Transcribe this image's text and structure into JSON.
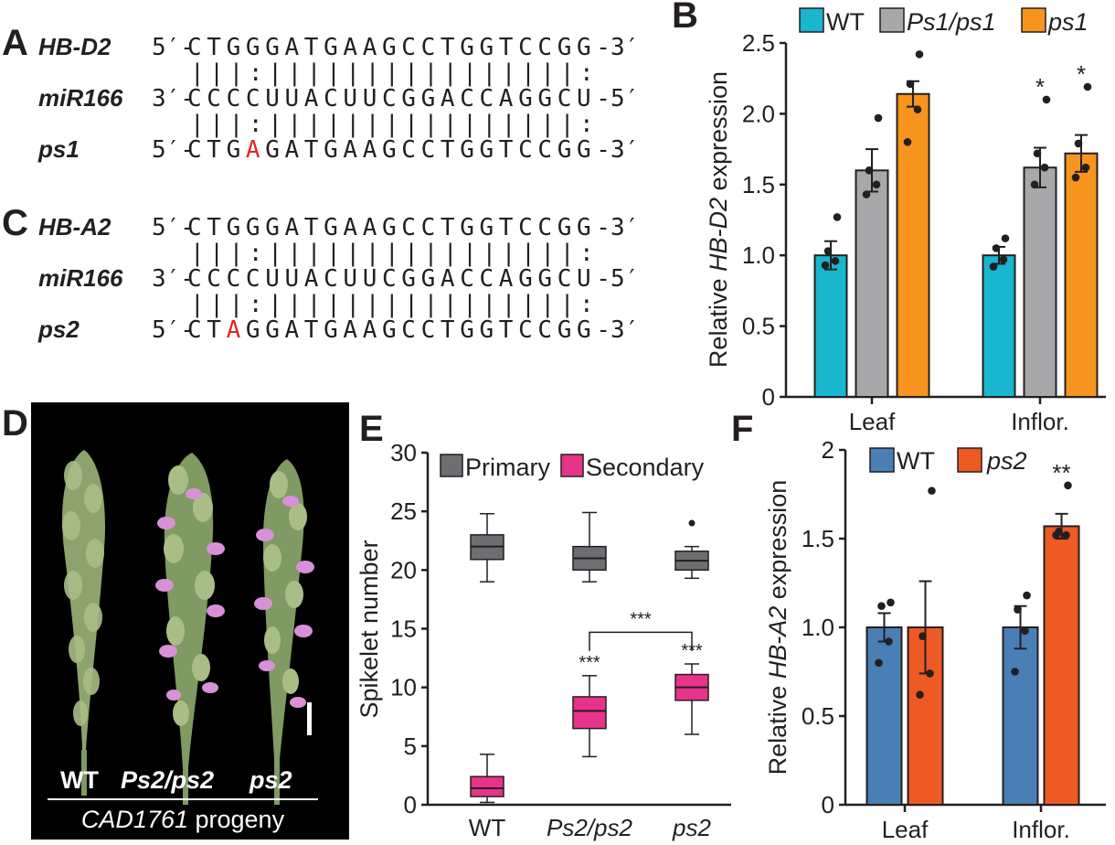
{
  "panels": {
    "A": "A",
    "B": "B",
    "C": "C",
    "D": "D",
    "E": "E",
    "F": "F"
  },
  "panel_a": {
    "rows": [
      {
        "name": "HB-D2",
        "p5": "5′-",
        "seq": "CTGGGATGAAGCCTGGTCCGG",
        "p3": "-3′"
      },
      {
        "name": "miR166",
        "p5": "3′-",
        "seq": "CCCCUUACUUCGGACCAGGCU",
        "p3": "-5′"
      },
      {
        "name": "ps1",
        "p5": "5′-",
        "seq": "CTGAGATGAAGCCTGGTCCGG",
        "p3": "-3′",
        "mut_index": 3
      }
    ],
    "pair_top": "|||:||||||||||||||||:",
    "pair_bottom": "|||:||||||||||||||||:"
  },
  "panel_c": {
    "rows": [
      {
        "name": "HB-A2",
        "p5": "5′-",
        "seq": "CTGGGATGAAGCCTGGTCCGG",
        "p3": "-3′"
      },
      {
        "name": "miR166",
        "p5": "3′-",
        "seq": "CCCCUUACUUCGGACCAGGCU",
        "p3": "-5′"
      },
      {
        "name": "ps2",
        "p5": "5′-",
        "seq": "CTAGGATGAAGCCTGGTCCGG",
        "p3": "-3′",
        "mut_index": 2
      }
    ],
    "pair_top": "|||:||||||||||||||||:",
    "pair_bottom": "|||:||||||||||||||||:"
  },
  "panel_d": {
    "labels": {
      "wt": "WT",
      "het": "Ps2/ps2",
      "mut": "ps2"
    },
    "caption_italic": "CAD1761",
    "caption_rest": " progeny"
  },
  "colors": {
    "wt_b": "#19b6cf",
    "het_b": "#a8a8aa",
    "ps1": "#f7941d",
    "primary": "#6d6e71",
    "secondary": "#e8338a",
    "wt_f": "#4a7fb5",
    "ps2": "#ee5a24"
  },
  "chart_data": [
    {
      "id": "B",
      "type": "bar",
      "ylabel_pre": "Relative ",
      "ylabel_italic": "HB-D2",
      "ylabel_post": " expression",
      "ylim": [
        0,
        2.5
      ],
      "yticks": [
        "0",
        "0.5",
        "1.0",
        "1.5",
        "2.0",
        "2.5"
      ],
      "categories": [
        "Leaf",
        "Inflor."
      ],
      "series": [
        {
          "name": "WT",
          "values": [
            1.0,
            1.0
          ],
          "err": [
            0.1,
            0.06
          ],
          "points": [
            [
              0.93,
              0.96,
              1.03,
              1.27
            ],
            [
              0.92,
              0.97,
              1.05,
              1.12
            ]
          ]
        },
        {
          "name": "Ps1/ps1",
          "values": [
            1.6,
            1.62
          ],
          "err": [
            0.15,
            0.14
          ],
          "points": [
            [
              1.43,
              1.5,
              1.6,
              1.97
            ],
            [
              1.5,
              1.62,
              1.72,
              2.1
            ]
          ]
        },
        {
          "name": "ps1",
          "values": [
            2.14,
            1.72
          ],
          "err": [
            0.09,
            0.13
          ],
          "points": [
            [
              1.8,
              2.03,
              2.21,
              2.42
            ],
            [
              1.55,
              1.62,
              1.79,
              2.19
            ]
          ]
        }
      ],
      "significance": [
        [
          "",
          "",
          ""
        ],
        [
          "",
          "*",
          "**"
        ],
        [
          "",
          "*",
          "**"
        ]
      ],
      "legend": [
        "WT",
        "Ps1/ps1",
        "ps1"
      ]
    },
    {
      "id": "E",
      "type": "box",
      "ylabel": "Spikelet number",
      "ylim": [
        0,
        30
      ],
      "yticks": [
        "0",
        "5",
        "10",
        "15",
        "20",
        "25",
        "30"
      ],
      "categories": [
        "WT",
        "Ps2/ps2",
        "ps2"
      ],
      "legend": [
        "Primary",
        "Secondary"
      ],
      "primary": [
        {
          "min": 19,
          "q1": 20.9,
          "med": 22,
          "q3": 23,
          "max": 24.8,
          "out": []
        },
        {
          "min": 19,
          "q1": 20,
          "med": 21,
          "q3": 22,
          "max": 24.9,
          "out": []
        },
        {
          "min": 19.3,
          "q1": 20,
          "med": 20.8,
          "q3": 21.6,
          "max": 22,
          "out": [
            24
          ]
        }
      ],
      "secondary": [
        {
          "min": 0.2,
          "q1": 0.7,
          "med": 1.4,
          "q3": 2.4,
          "max": 4.3,
          "out": []
        },
        {
          "min": 4.1,
          "q1": 6.5,
          "med": 8,
          "q3": 9.2,
          "max": 11,
          "out": []
        },
        {
          "min": 6,
          "q1": 8.9,
          "med": 10,
          "q3": 11.1,
          "max": 12,
          "out": []
        }
      ],
      "sig_labels": [
        "***",
        "***"
      ],
      "bracket_label": "***"
    },
    {
      "id": "F",
      "type": "bar",
      "ylabel_pre": "Relative ",
      "ylabel_italic": "HB-A2",
      "ylabel_post": " expression",
      "ylim": [
        0,
        2
      ],
      "yticks": [
        "0",
        "0.5",
        "1.0",
        "1.5",
        "2"
      ],
      "categories": [
        "Leaf",
        "Inflor."
      ],
      "series": [
        {
          "name": "WT",
          "values": [
            1.0,
            1.0
          ],
          "err": [
            0.08,
            0.12
          ],
          "points": [
            [
              0.8,
              0.92,
              1.12,
              1.14
            ],
            [
              0.75,
              0.98,
              1.1,
              1.18
            ]
          ]
        },
        {
          "name": "ps2",
          "values": [
            1.0,
            1.57
          ],
          "err": [
            0.26,
            0.07
          ],
          "points": [
            [
              0.62,
              0.74,
              0.95,
              1.77
            ],
            [
              1.52,
              1.52,
              1.54,
              1.8
            ]
          ]
        }
      ],
      "significance": [
        [
          "",
          ""
        ],
        [
          "",
          "**"
        ]
      ],
      "legend": [
        "WT",
        "ps2"
      ]
    }
  ]
}
